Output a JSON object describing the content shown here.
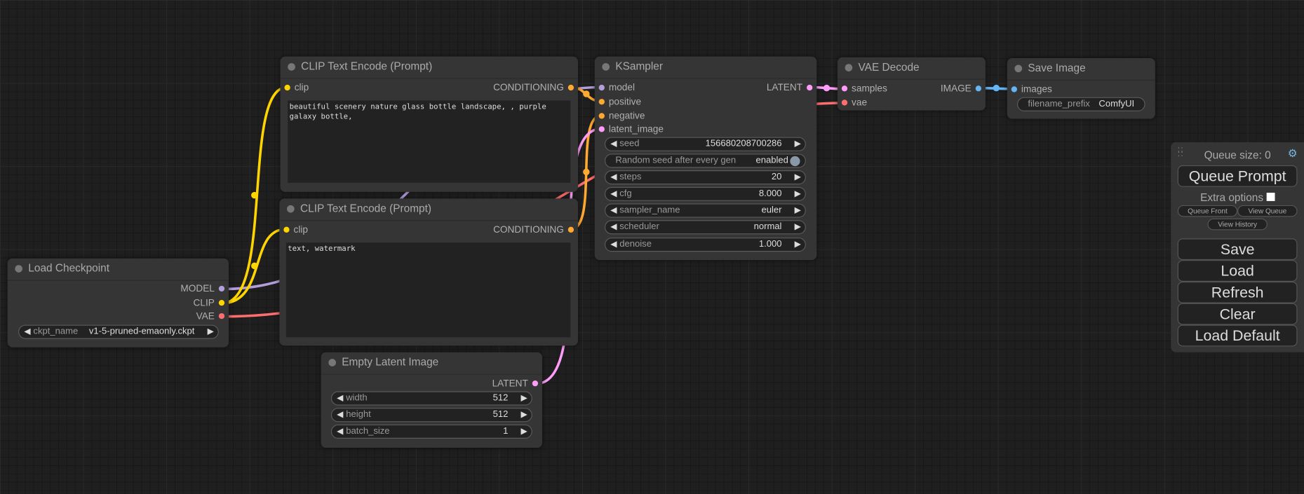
{
  "colors": {
    "model": "#b39ddb",
    "clip": "#ffd500",
    "vae": "#ff6e6e",
    "conditioning": "#ffa931",
    "latent": "#ff9cf9",
    "image": "#64b5f6"
  },
  "nodes": {
    "clip_pos": {
      "title": "CLIP Text Encode (Prompt)",
      "input": "clip",
      "output": "CONDITIONING",
      "text": "beautiful scenery nature glass bottle landscape, , purple galaxy bottle,"
    },
    "clip_neg": {
      "title": "CLIP Text Encode (Prompt)",
      "input": "clip",
      "output": "CONDITIONING",
      "text": "text, watermark"
    },
    "ksampler": {
      "title": "KSampler",
      "inputs": [
        "model",
        "positive",
        "negative",
        "latent_image"
      ],
      "output": "LATENT",
      "widgets": [
        {
          "name": "seed",
          "value": "156680208700286"
        },
        {
          "name": "steps",
          "value": "20"
        },
        {
          "name": "cfg",
          "value": "8.000"
        },
        {
          "name": "sampler_name",
          "value": "euler"
        },
        {
          "name": "scheduler",
          "value": "normal"
        },
        {
          "name": "denoise",
          "value": "1.000"
        }
      ],
      "toggle": {
        "name": "Random seed after every gen",
        "value": "enabled"
      }
    },
    "vae_decode": {
      "title": "VAE Decode",
      "inputs": [
        "samples",
        "vae"
      ],
      "output": "IMAGE"
    },
    "save_image": {
      "title": "Save Image",
      "input": "images",
      "widget": {
        "name": "filename_prefix",
        "value": "ComfyUI"
      }
    },
    "load_checkpoint": {
      "title": "Load Checkpoint",
      "outputs": [
        "MODEL",
        "CLIP",
        "VAE"
      ],
      "widget": {
        "name": "ckpt_name",
        "value": "v1-5-pruned-emaonly.ckpt"
      }
    },
    "empty_latent": {
      "title": "Empty Latent Image",
      "output": "LATENT",
      "widgets": [
        {
          "name": "width",
          "value": "512"
        },
        {
          "name": "height",
          "value": "512"
        },
        {
          "name": "batch_size",
          "value": "1"
        }
      ]
    }
  },
  "panel": {
    "queue_size": "Queue size: 0",
    "queue_prompt": "Queue Prompt",
    "extra_options": "Extra options",
    "queue_front": "Queue Front",
    "view_queue": "View Queue",
    "view_history": "View History",
    "save": "Save",
    "load": "Load",
    "refresh": "Refresh",
    "clear": "Clear",
    "load_default": "Load Default"
  }
}
